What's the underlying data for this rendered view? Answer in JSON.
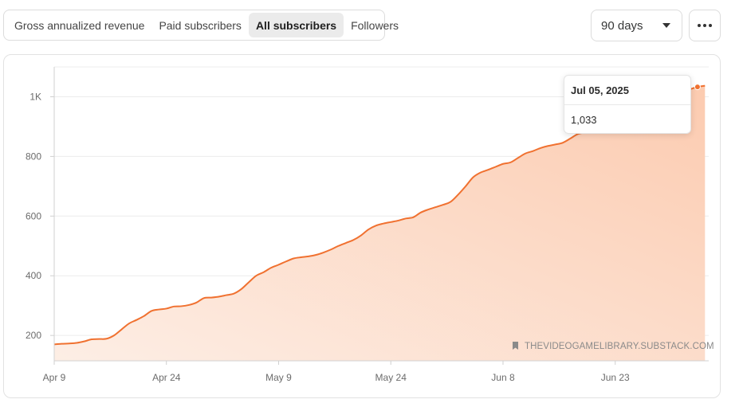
{
  "tabs": [
    {
      "label": "Gross annualized revenue",
      "active": false
    },
    {
      "label": "Paid subscribers",
      "active": false
    },
    {
      "label": "All subscribers",
      "active": true
    },
    {
      "label": "Followers",
      "active": false
    }
  ],
  "period_select": {
    "value": "90 days"
  },
  "more_button": {
    "icon": "ellipsis-icon"
  },
  "tooltip": {
    "date": "Jul 05, 2025",
    "value": "1,033"
  },
  "watermark": {
    "text": "THEVIDEOGAMELIBRARY.SUBSTACK.COM",
    "icon": "bookmark-icon"
  },
  "colors": {
    "line": "#f07130",
    "fill": "#fdd3bc",
    "grid": "#ececec"
  },
  "chart_data": {
    "type": "area",
    "series": [
      {
        "values": [
          [
            0,
            170
          ],
          [
            1,
            172
          ],
          [
            2,
            173
          ],
          [
            3,
            175
          ],
          [
            4,
            180
          ],
          [
            5,
            187
          ],
          [
            6,
            188
          ],
          [
            7,
            189
          ],
          [
            8,
            200
          ],
          [
            9,
            220
          ],
          [
            10,
            240
          ],
          [
            11,
            252
          ],
          [
            12,
            265
          ],
          [
            13,
            282
          ],
          [
            14,
            287
          ],
          [
            15,
            290
          ],
          [
            16,
            297
          ],
          [
            17,
            298
          ],
          [
            18,
            302
          ],
          [
            19,
            310
          ],
          [
            20,
            325
          ],
          [
            21,
            327
          ],
          [
            22,
            330
          ],
          [
            23,
            335
          ],
          [
            24,
            340
          ],
          [
            25,
            355
          ],
          [
            26,
            378
          ],
          [
            27,
            400
          ],
          [
            28,
            412
          ],
          [
            29,
            427
          ],
          [
            30,
            437
          ],
          [
            31,
            448
          ],
          [
            32,
            458
          ],
          [
            33,
            462
          ],
          [
            34,
            465
          ],
          [
            35,
            470
          ],
          [
            36,
            478
          ],
          [
            37,
            488
          ],
          [
            38,
            500
          ],
          [
            39,
            510
          ],
          [
            40,
            520
          ],
          [
            41,
            535
          ],
          [
            42,
            555
          ],
          [
            43,
            568
          ],
          [
            44,
            575
          ],
          [
            45,
            580
          ],
          [
            46,
            585
          ],
          [
            47,
            592
          ],
          [
            48,
            596
          ],
          [
            49,
            612
          ],
          [
            50,
            622
          ],
          [
            51,
            630
          ],
          [
            52,
            638
          ],
          [
            53,
            648
          ],
          [
            54,
            672
          ],
          [
            55,
            700
          ],
          [
            56,
            730
          ],
          [
            57,
            746
          ],
          [
            58,
            755
          ],
          [
            59,
            765
          ],
          [
            60,
            775
          ],
          [
            61,
            780
          ],
          [
            62,
            795
          ],
          [
            63,
            810
          ],
          [
            64,
            818
          ],
          [
            65,
            828
          ],
          [
            66,
            835
          ],
          [
            67,
            840
          ],
          [
            68,
            846
          ],
          [
            69,
            860
          ],
          [
            70,
            875
          ],
          [
            71,
            880
          ],
          [
            72,
            885
          ],
          [
            73,
            895
          ],
          [
            74,
            905
          ],
          [
            75,
            918
          ],
          [
            76,
            928
          ],
          [
            77,
            938
          ],
          [
            78,
            948
          ],
          [
            79,
            958
          ],
          [
            80,
            972
          ],
          [
            81,
            985
          ],
          [
            82,
            995
          ],
          [
            83,
            1005
          ],
          [
            84,
            1015
          ],
          [
            85,
            1025
          ],
          [
            86,
            1033
          ],
          [
            87,
            1037
          ]
        ]
      }
    ],
    "x_ticks": [
      {
        "label": "Apr 9",
        "x": 0
      },
      {
        "label": "Apr 24",
        "x": 15
      },
      {
        "label": "May 9",
        "x": 30
      },
      {
        "label": "May 24",
        "x": 45
      },
      {
        "label": "Jun 8",
        "x": 60
      },
      {
        "label": "Jun 23",
        "x": 75
      }
    ],
    "y_ticks": [
      {
        "label": "200",
        "value": 200
      },
      {
        "label": "400",
        "value": 400
      },
      {
        "label": "600",
        "value": 600
      },
      {
        "label": "800",
        "value": 800
      },
      {
        "label": "1K",
        "value": 1000
      }
    ],
    "xlim": [
      0,
      87.5
    ],
    "ylim": [
      115,
      1100
    ],
    "grid": true,
    "highlight_x": 86
  }
}
